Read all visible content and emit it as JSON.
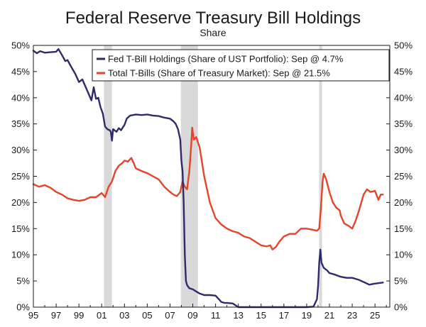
{
  "chart_data": {
    "type": "line",
    "title": "Federal Reserve Treasury Bill Holdings",
    "subtitle": "Share",
    "xlabel": "",
    "ylabel": "",
    "xlim": [
      1995,
      2026.3
    ],
    "ylim": [
      0,
      50
    ],
    "y_ticks": [
      0,
      5,
      10,
      15,
      20,
      25,
      30,
      35,
      40,
      45,
      50
    ],
    "y_tick_labels": [
      "0%",
      "5%",
      "10%",
      "15%",
      "20%",
      "25%",
      "30%",
      "35%",
      "40%",
      "45%",
      "50%"
    ],
    "x_ticks": [
      1995,
      1997,
      1999,
      2001,
      2003,
      2005,
      2007,
      2009,
      2011,
      2013,
      2015,
      2017,
      2019,
      2021,
      2023,
      2025
    ],
    "x_tick_labels": [
      "95",
      "97",
      "99",
      "01",
      "03",
      "05",
      "07",
      "09",
      "11",
      "13",
      "15",
      "17",
      "19",
      "21",
      "23",
      "25"
    ],
    "recessions": [
      [
        2001.2,
        2001.9
      ],
      [
        2007.95,
        2009.45
      ],
      [
        2020.1,
        2020.35
      ]
    ],
    "legend_position": "top-right",
    "series": [
      {
        "name": "Fed T-Bill Holdings (Share of UST Portfolio): Sep @ 4.7%",
        "color": "#2e2a6e",
        "x": [
          1995.0,
          1995.3,
          1995.6,
          1996.0,
          1996.5,
          1997.0,
          1997.2,
          1997.5,
          1997.8,
          1998.0,
          1998.3,
          1998.7,
          1999.0,
          1999.3,
          1999.6,
          1999.9,
          2000.1,
          2000.3,
          2000.5,
          2000.7,
          2000.9,
          2001.1,
          2001.3,
          2001.5,
          2001.7,
          2001.8,
          2001.9,
          2002.0,
          2002.3,
          2002.5,
          2002.7,
          2002.9,
          2003.0,
          2003.2,
          2003.5,
          2004.0,
          2004.5,
          2005.0,
          2005.5,
          2006.0,
          2006.5,
          2007.0,
          2007.3,
          2007.5,
          2007.7,
          2007.9,
          2008.0,
          2008.1,
          2008.2,
          2008.3,
          2008.4,
          2008.5,
          2008.7,
          2009.0,
          2009.3,
          2009.6,
          2010.0,
          2010.5,
          2011.0,
          2011.3,
          2011.5,
          2011.8,
          2012.0,
          2012.5,
          2013.0,
          2013.5,
          2014.0,
          2015.0,
          2016.0,
          2017.0,
          2018.0,
          2019.0,
          2019.6,
          2019.9,
          2020.0,
          2020.1,
          2020.2,
          2020.3,
          2020.5,
          2020.8,
          2021.0,
          2021.5,
          2022.0,
          2022.5,
          2023.0,
          2023.3,
          2023.6,
          2024.0,
          2024.5,
          2025.0,
          2025.7
        ],
        "values": [
          49.0,
          48.5,
          48.9,
          48.6,
          48.7,
          48.8,
          49.3,
          48.2,
          47.0,
          47.2,
          46.0,
          44.5,
          43.0,
          43.5,
          42.0,
          40.5,
          39.5,
          42.0,
          39.8,
          40.0,
          38.2,
          37.0,
          34.5,
          34.0,
          33.8,
          33.5,
          31.8,
          34.0,
          33.5,
          34.2,
          33.8,
          34.5,
          34.8,
          36.0,
          36.6,
          36.8,
          36.7,
          36.8,
          36.6,
          36.5,
          36.2,
          36.0,
          35.5,
          35.0,
          34.0,
          32.0,
          28.0,
          26.0,
          20.0,
          10.0,
          5.0,
          4.2,
          3.6,
          3.4,
          3.0,
          2.6,
          2.3,
          2.3,
          2.2,
          1.5,
          1.0,
          0.8,
          0.8,
          0.7,
          0.0,
          0.0,
          0.0,
          0.0,
          0.0,
          0.0,
          0.0,
          0.0,
          0.1,
          1.5,
          4.0,
          8.5,
          11.0,
          8.5,
          7.5,
          7.0,
          6.5,
          6.2,
          5.8,
          5.6,
          5.6,
          5.4,
          5.2,
          4.8,
          4.3,
          4.5,
          4.7
        ]
      },
      {
        "name": "Total T-Bills (Share of Treasury Market): Sep @ 21.5%",
        "color": "#e4442a",
        "x": [
          1995.0,
          1995.5,
          1996.0,
          1996.5,
          1997.0,
          1997.5,
          1998.0,
          1998.5,
          1999.0,
          1999.5,
          2000.0,
          2000.5,
          2001.0,
          2001.3,
          2001.6,
          2001.9,
          2002.2,
          2002.5,
          2002.8,
          2003.0,
          2003.3,
          2003.6,
          2003.8,
          2004.0,
          2004.5,
          2005.0,
          2005.5,
          2006.0,
          2006.5,
          2007.0,
          2007.3,
          2007.6,
          2007.9,
          2008.1,
          2008.3,
          2008.5,
          2008.7,
          2008.85,
          2008.95,
          2009.1,
          2009.3,
          2009.6,
          2010.0,
          2010.5,
          2011.0,
          2011.5,
          2012.0,
          2012.5,
          2013.0,
          2013.5,
          2014.0,
          2014.5,
          2015.0,
          2015.5,
          2015.8,
          2016.0,
          2016.3,
          2016.6,
          2017.0,
          2017.5,
          2018.0,
          2018.5,
          2019.0,
          2019.5,
          2019.9,
          2020.1,
          2020.25,
          2020.4,
          2020.5,
          2020.7,
          2021.0,
          2021.3,
          2021.6,
          2021.9,
          2022.0,
          2022.3,
          2022.7,
          2023.0,
          2023.3,
          2023.6,
          2024.0,
          2024.3,
          2024.6,
          2025.0,
          2025.3,
          2025.5,
          2025.7
        ],
        "values": [
          23.5,
          23.0,
          23.3,
          22.8,
          22.0,
          21.5,
          20.8,
          20.5,
          20.3,
          20.5,
          21.0,
          21.0,
          21.8,
          21.0,
          23.0,
          24.0,
          26.0,
          27.0,
          27.5,
          28.0,
          27.8,
          28.5,
          27.6,
          26.5,
          26.0,
          25.6,
          25.0,
          24.4,
          23.0,
          22.0,
          21.5,
          21.2,
          22.0,
          24.0,
          23.0,
          22.5,
          26.0,
          30.5,
          34.3,
          32.0,
          32.5,
          30.5,
          25.0,
          20.0,
          17.0,
          15.8,
          15.0,
          14.5,
          14.2,
          13.5,
          13.2,
          12.5,
          11.8,
          11.6,
          11.8,
          11.0,
          11.5,
          12.5,
          13.5,
          14.0,
          14.0,
          15.0,
          15.0,
          14.8,
          14.6,
          15.0,
          19.0,
          24.0,
          25.5,
          24.5,
          22.0,
          20.0,
          19.0,
          18.5,
          17.5,
          16.0,
          15.5,
          15.0,
          16.5,
          18.5,
          21.5,
          22.5,
          22.0,
          22.2,
          20.5,
          21.5,
          21.5
        ]
      }
    ]
  }
}
